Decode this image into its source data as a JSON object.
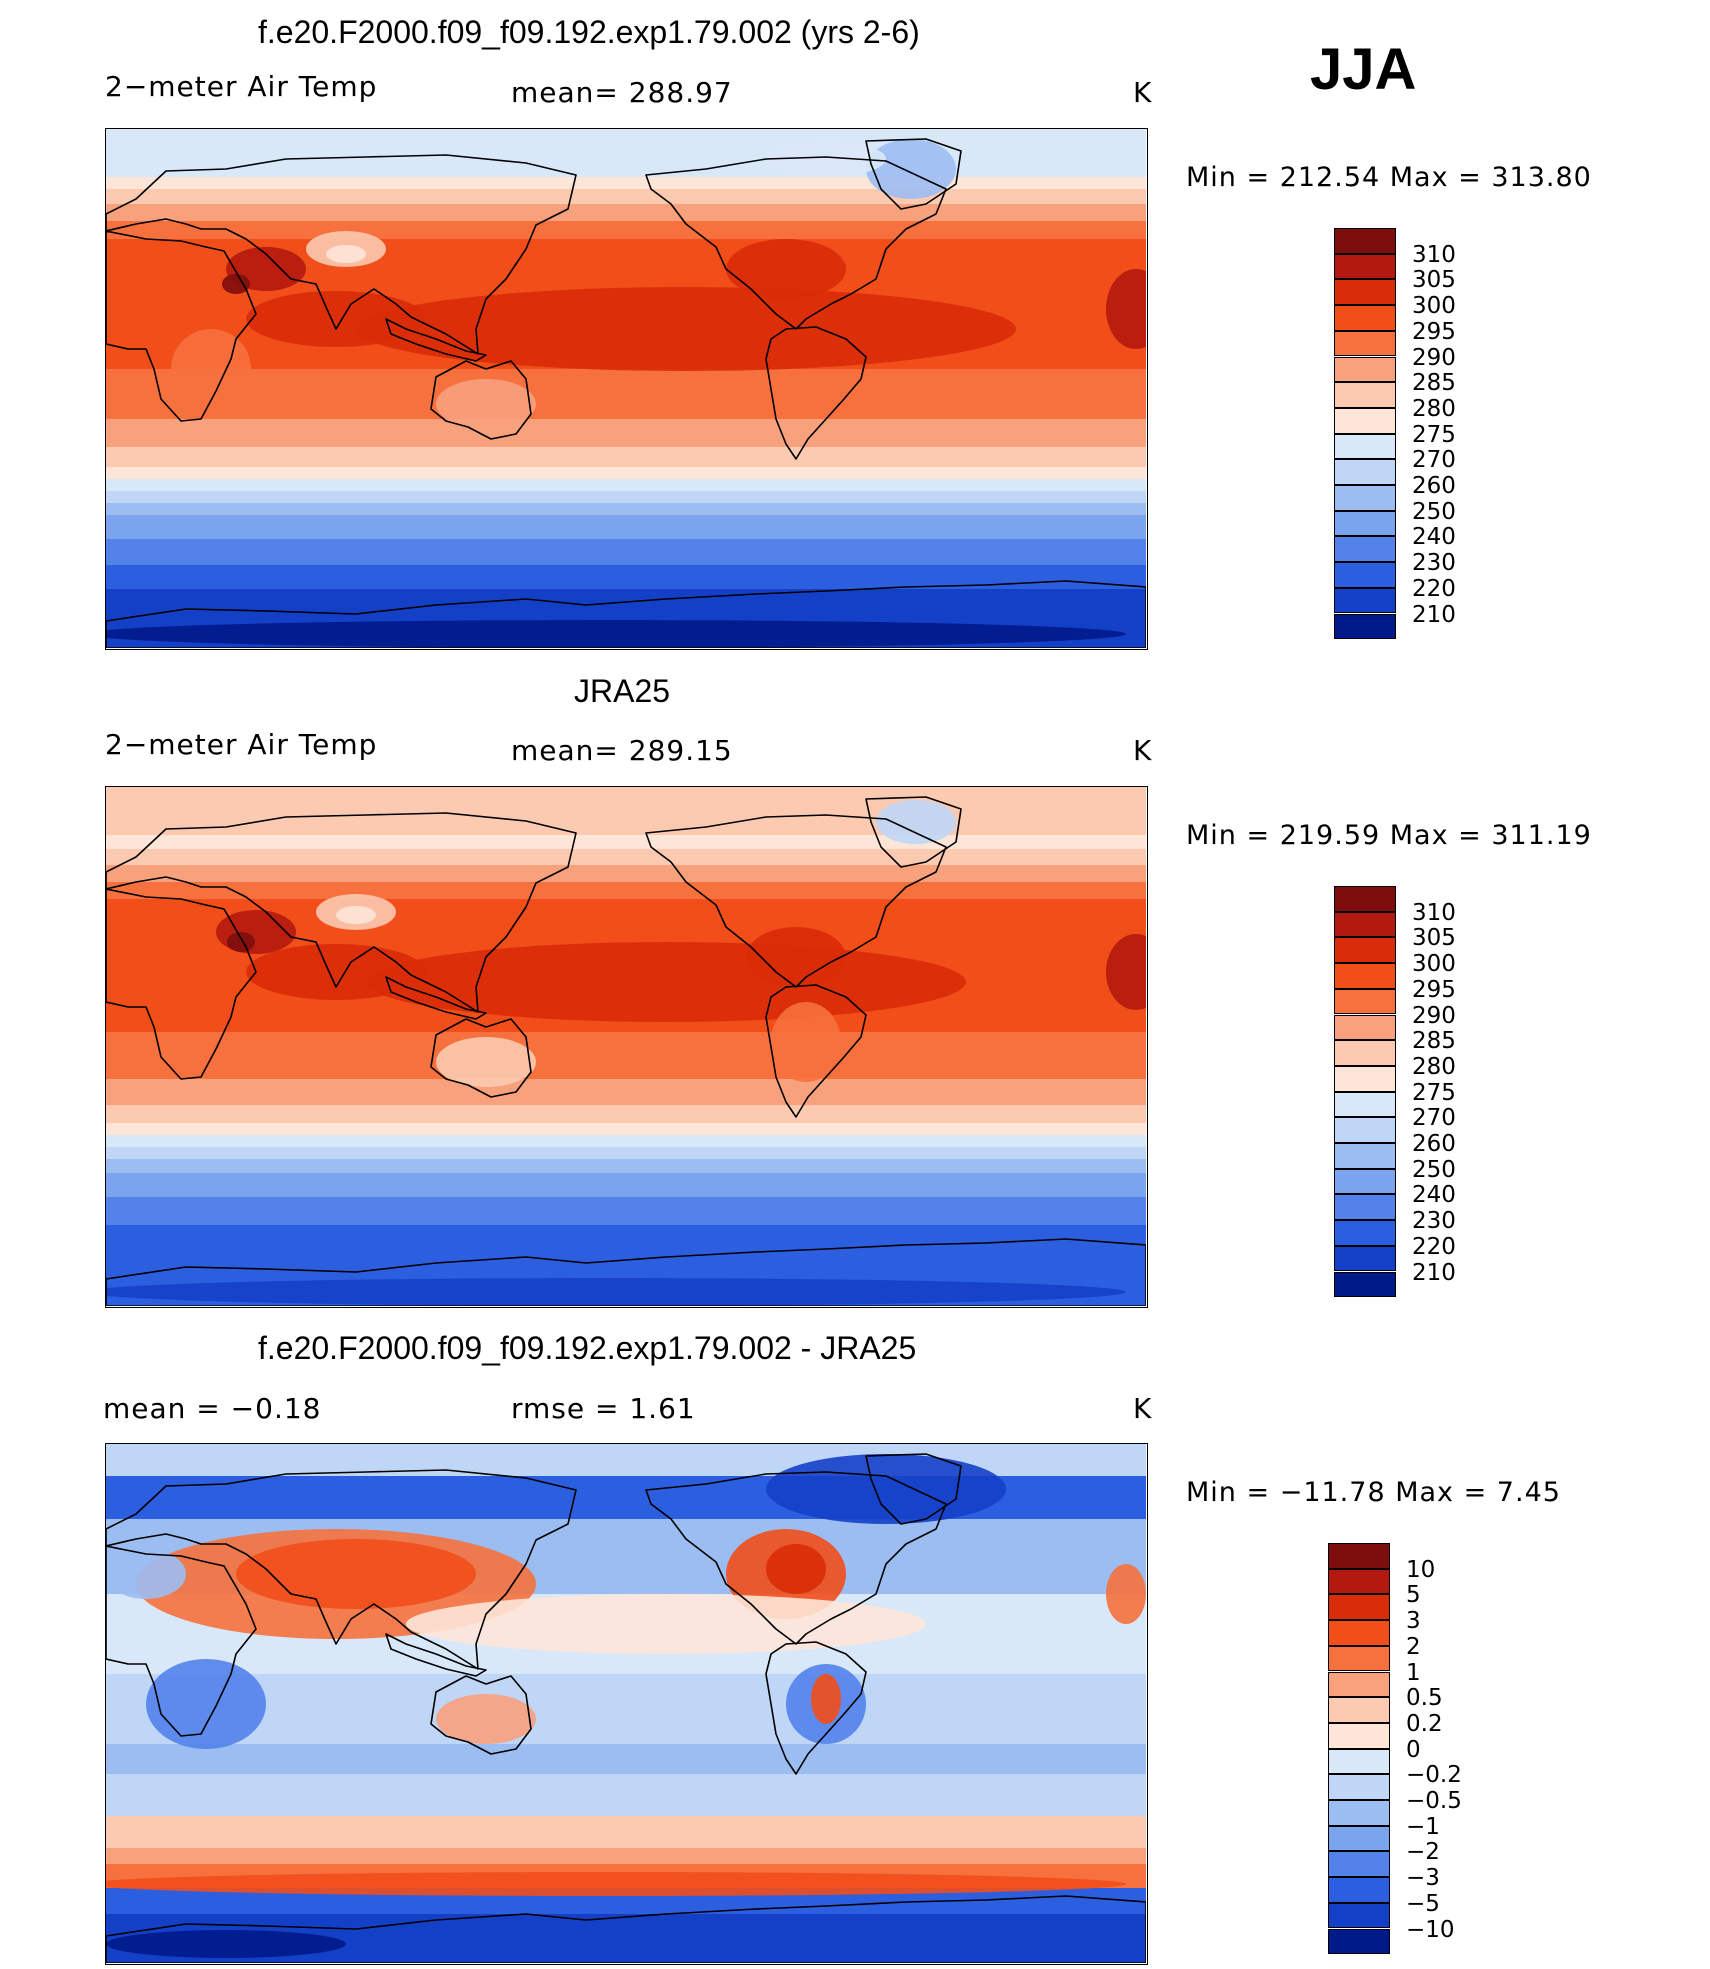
{
  "season": "JJA",
  "units": "K",
  "panels": [
    {
      "title": "f.e20.F2000.f09_f09.192.exp1.79.002 (yrs 2-6)",
      "variable": "2−meter Air Temp",
      "stat": "mean=  288.97",
      "units": "K",
      "minmax": "Min  =  212.54  Max  =  313.80",
      "field": "model",
      "colorbar": {
        "labels": [
          "310",
          "305",
          "300",
          "295",
          "290",
          "285",
          "280",
          "275",
          "270",
          "260",
          "250",
          "240",
          "230",
          "220",
          "210"
        ],
        "colors": [
          "#7e0d0d",
          "#b3190e",
          "#d92c08",
          "#f24e1a",
          "#f6713d",
          "#f8a17d",
          "#fbcab0",
          "#fde6d8",
          "#d9e8f9",
          "#bfd6f7",
          "#9cbdf2",
          "#7aa5ee",
          "#5282ea",
          "#2c5ee0",
          "#1440c8",
          "#001a8a"
        ]
      }
    },
    {
      "title": "JRA25",
      "variable": "2−meter Air Temp",
      "stat": "mean=  289.15",
      "units": "K",
      "minmax": "Min  =  219.59  Max  =  311.19",
      "field": "obs",
      "colorbar": {
        "labels": [
          "310",
          "305",
          "300",
          "295",
          "290",
          "285",
          "280",
          "275",
          "270",
          "260",
          "250",
          "240",
          "230",
          "220",
          "210"
        ],
        "colors": [
          "#7e0d0d",
          "#b3190e",
          "#d92c08",
          "#f24e1a",
          "#f6713d",
          "#f8a17d",
          "#fbcab0",
          "#fde6d8",
          "#d9e8f9",
          "#bfd6f7",
          "#9cbdf2",
          "#7aa5ee",
          "#5282ea",
          "#2c5ee0",
          "#1440c8",
          "#001a8a"
        ]
      }
    },
    {
      "title": "f.e20.F2000.f09_f09.192.exp1.79.002 - JRA25",
      "variable": "mean  =     −0.18",
      "stat": "rmse  =      1.61",
      "units": "K",
      "minmax": "Min  =  −11.78  Max  =      7.45",
      "field": "diff",
      "colorbar": {
        "labels": [
          "10",
          "5",
          "3",
          "2",
          "1",
          "0.5",
          "0.2",
          "0",
          "−0.2",
          "−0.5",
          "−1",
          "−2",
          "−3",
          "−5",
          "−10"
        ],
        "colors": [
          "#7e0d0d",
          "#b3190e",
          "#d92c08",
          "#f24e1a",
          "#f6713d",
          "#f8a17d",
          "#fbcab0",
          "#fde6d8",
          "#d9e8f9",
          "#bfd6f7",
          "#9cbdf2",
          "#7aa5ee",
          "#5282ea",
          "#2c5ee0",
          "#1440c8",
          "#001a8a"
        ]
      }
    }
  ]
}
